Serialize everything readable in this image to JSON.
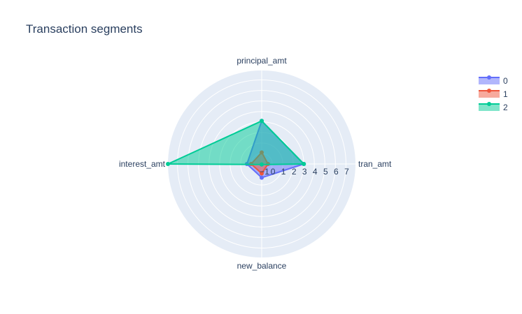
{
  "title": "Transaction segments",
  "colors": {
    "polar_bg": "#e5ecf6",
    "grid": "#ffffff",
    "text": "#2a3f5f",
    "series": [
      "#636efa",
      "#ef553b",
      "#00cc96"
    ]
  },
  "chart_data": {
    "type": "radar",
    "title": "Transaction segments",
    "theta": [
      "tran_amt",
      "principal_amt",
      "interest_amt",
      "new_balance"
    ],
    "radial_ticks": [
      "−1",
      "0",
      "1",
      "2",
      "3",
      "4",
      "5",
      "6",
      "7"
    ],
    "radial_tick_values": [
      -1,
      0,
      1,
      2,
      3,
      4,
      5,
      6,
      7
    ],
    "rrange": [
      -1,
      7.9
    ],
    "legend_position": "top-right",
    "series": [
      {
        "name": "0",
        "values": [
          3.0,
          3.1,
          0.4,
          0.3
        ]
      },
      {
        "name": "1",
        "values": [
          -0.4,
          0.1,
          0.0,
          -0.1
        ]
      },
      {
        "name": "2",
        "values": [
          3.0,
          3.1,
          7.9,
          -0.95
        ]
      }
    ]
  }
}
